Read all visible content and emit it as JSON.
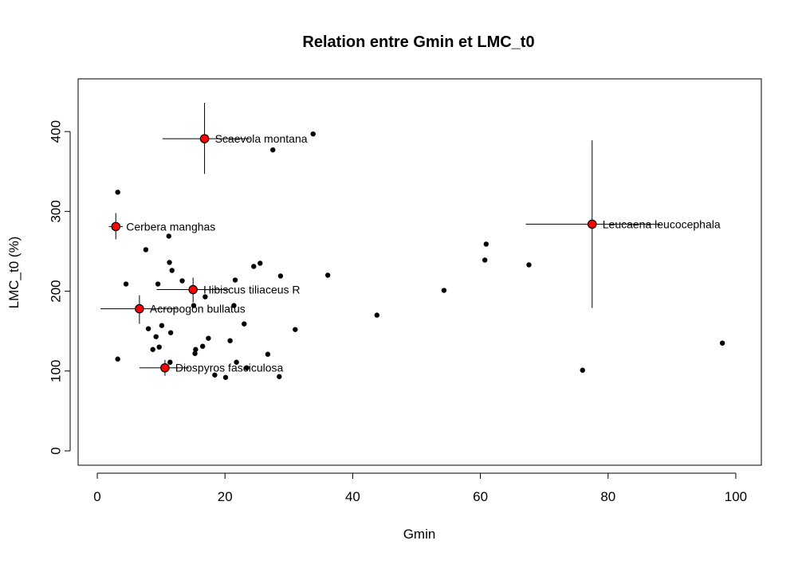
{
  "chart_data": {
    "type": "scatter",
    "title": "Relation entre Gmin et LMC_t0",
    "xlabel": "Gmin",
    "ylabel": "LMC_t0 (%)",
    "xlim": [
      -3,
      104
    ],
    "ylim": [
      -18,
      466
    ],
    "xticks": [
      "0",
      "20",
      "40",
      "60",
      "80",
      "100"
    ],
    "xtick_values": [
      0,
      20,
      40,
      60,
      80,
      100
    ],
    "yticks": [
      "0",
      "100",
      "200",
      "300",
      "400"
    ],
    "ytick_values": [
      0,
      100,
      200,
      300,
      400
    ],
    "colors": {
      "highlight": "#ff0000",
      "point": "#000000",
      "axis": "#000000"
    },
    "series": [
      {
        "points": [
          {
            "x": 3.2,
            "y": 324
          },
          {
            "x": 4.5,
            "y": 209
          },
          {
            "x": 7.6,
            "y": 252
          },
          {
            "x": 3.2,
            "y": 115
          },
          {
            "x": 8.0,
            "y": 153
          },
          {
            "x": 8.7,
            "y": 127
          },
          {
            "x": 9.2,
            "y": 143
          },
          {
            "x": 9.5,
            "y": 209
          },
          {
            "x": 9.7,
            "y": 130
          },
          {
            "x": 10.1,
            "y": 157
          },
          {
            "x": 11.2,
            "y": 269
          },
          {
            "x": 11.3,
            "y": 236
          },
          {
            "x": 11.7,
            "y": 226
          },
          {
            "x": 11.5,
            "y": 148
          },
          {
            "x": 11.4,
            "y": 111
          },
          {
            "x": 13.3,
            "y": 213
          },
          {
            "x": 15.1,
            "y": 182
          },
          {
            "x": 15.3,
            "y": 122
          },
          {
            "x": 15.4,
            "y": 127
          },
          {
            "x": 16.5,
            "y": 131
          },
          {
            "x": 16.9,
            "y": 193
          },
          {
            "x": 17.4,
            "y": 141
          },
          {
            "x": 18.4,
            "y": 95
          },
          {
            "x": 20.1,
            "y": 92
          },
          {
            "x": 20.8,
            "y": 138
          },
          {
            "x": 21.4,
            "y": 182
          },
          {
            "x": 21.6,
            "y": 214
          },
          {
            "x": 21.8,
            "y": 111
          },
          {
            "x": 23.0,
            "y": 159
          },
          {
            "x": 23.4,
            "y": 104
          },
          {
            "x": 24.5,
            "y": 231
          },
          {
            "x": 25.5,
            "y": 235
          },
          {
            "x": 26.7,
            "y": 121
          },
          {
            "x": 27.5,
            "y": 377
          },
          {
            "x": 28.5,
            "y": 93
          },
          {
            "x": 28.7,
            "y": 219
          },
          {
            "x": 31.0,
            "y": 152
          },
          {
            "x": 33.8,
            "y": 397
          },
          {
            "x": 36.1,
            "y": 220
          },
          {
            "x": 43.8,
            "y": 170
          },
          {
            "x": 54.3,
            "y": 201
          },
          {
            "x": 60.7,
            "y": 239
          },
          {
            "x": 60.9,
            "y": 259
          },
          {
            "x": 67.6,
            "y": 233
          },
          {
            "x": 76.0,
            "y": 101
          },
          {
            "x": 97.9,
            "y": 135
          }
        ]
      },
      {
        "points": [
          {
            "label": "Scaevola montana",
            "x": 16.8,
            "y": 391,
            "x_err": [
              10.2,
              23.9
            ],
            "y_err": [
              347,
              436
            ]
          },
          {
            "label": "Cerbera manghas",
            "x": 2.9,
            "y": 281,
            "x_err": [
              1.8,
              4.0
            ],
            "y_err": [
              265,
              298
            ]
          },
          {
            "label": "Leucaena leucocephala",
            "x": 77.5,
            "y": 284,
            "x_err": [
              67.1,
              88.1
            ],
            "y_err": [
              179,
              389
            ]
          },
          {
            "label": "Hibiscus tiliaceus R",
            "x": 15.0,
            "y": 202,
            "x_err": [
              9.3,
              20.6
            ],
            "y_err": [
              186,
              217
            ]
          },
          {
            "label": "Acropogon bullatus",
            "x": 6.6,
            "y": 178,
            "x_err": [
              0.5,
              12.5
            ],
            "y_err": [
              159,
              195
            ]
          },
          {
            "label": "Diospyros fasciculosa",
            "x": 10.6,
            "y": 104,
            "x_err": [
              6.6,
              14.4
            ],
            "y_err": [
              94,
              114
            ]
          }
        ]
      }
    ]
  }
}
